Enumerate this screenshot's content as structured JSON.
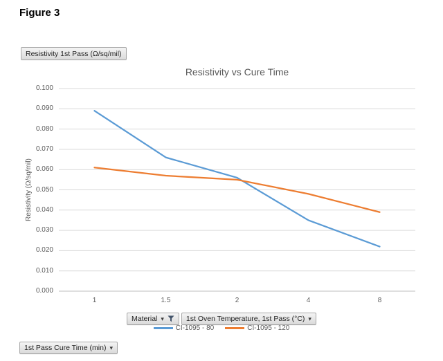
{
  "figure_label": "Figure 3",
  "field_buttons": {
    "value": {
      "label": "Resistivity 1st Pass (Ω/sq/mil)"
    },
    "material": {
      "label": "Material"
    },
    "oven_temperature": {
      "label": "1st Oven Temperature, 1st Pass (°C)"
    },
    "cure_time": {
      "label": "1st Pass Cure Time (min)"
    }
  },
  "icons": {
    "dropdown_caret": "▾",
    "filter": "funnel"
  },
  "colors": {
    "grid": "#D9D9D9",
    "axis": "#BFBFBF",
    "muted_text": "#595959",
    "button_border": "#A6A6A6",
    "filter_icon": "#44546A"
  },
  "chart_data": {
    "type": "line",
    "title": "Resistivity vs Cure Time",
    "xlabel": "",
    "ylabel": "Resistivity (Ω/sq/mil)",
    "categories": [
      "1",
      "1.5",
      "2",
      "4",
      "8"
    ],
    "series": [
      {
        "name": "CI-1095 - 80",
        "color": "#5B9BD5",
        "values": [
          0.089,
          0.066,
          0.056,
          0.035,
          0.022
        ]
      },
      {
        "name": "CI-1095 - 120",
        "color": "#ED7D31",
        "values": [
          0.061,
          0.057,
          0.055,
          0.048,
          0.039
        ]
      }
    ],
    "ylim": [
      0,
      0.1
    ],
    "ytick_step": 0.01,
    "ytick_decimals": 3,
    "grid": true,
    "legend_position": "bottom"
  }
}
